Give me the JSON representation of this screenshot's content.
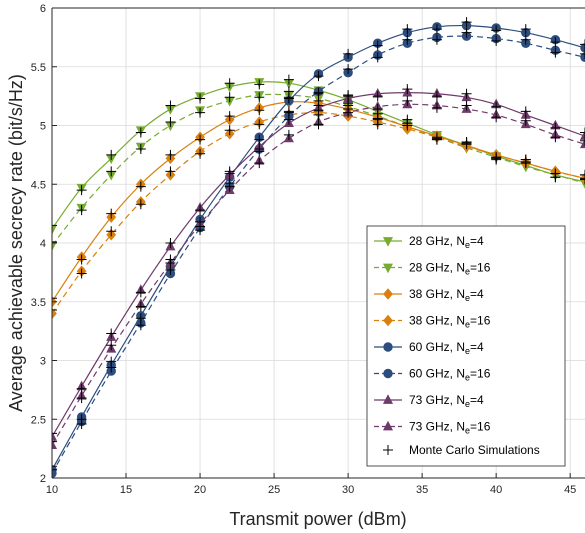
{
  "chart_data": {
    "type": "line",
    "title": "",
    "xlabel": "Transmit power (dBm)",
    "ylabel": "Average achievable secrecy rate (bit/s/Hz)",
    "xlim": [
      10,
      46
    ],
    "ylim": [
      2,
      6
    ],
    "xticks": [
      10,
      15,
      20,
      25,
      30,
      35,
      40,
      45
    ],
    "yticks": [
      2,
      2.5,
      3,
      3.5,
      4,
      4.5,
      5,
      5.5,
      6
    ],
    "grid": true,
    "legend_position": "bottom-right",
    "x": [
      10,
      12,
      14,
      16,
      18,
      20,
      22,
      24,
      26,
      28,
      30,
      32,
      34,
      36,
      38,
      40,
      42,
      44,
      46
    ],
    "series": [
      {
        "name": "28 GHz, N",
        "sub": "e",
        "suffix": "=4",
        "color": "#77ac30",
        "dash": "solid",
        "marker": "triangle-down",
        "values": [
          4.12,
          4.47,
          4.72,
          4.96,
          5.14,
          5.25,
          5.33,
          5.37,
          5.36,
          5.3,
          5.22,
          5.12,
          5.02,
          4.92,
          4.83,
          4.74,
          4.66,
          4.58,
          4.52
        ]
      },
      {
        "name": "28 GHz, N",
        "sub": "e",
        "suffix": "=16",
        "color": "#77ac30",
        "dash": "dashed",
        "marker": "triangle-down",
        "values": [
          3.98,
          4.3,
          4.58,
          4.82,
          5.0,
          5.13,
          5.21,
          5.26,
          5.26,
          5.23,
          5.16,
          5.08,
          4.99,
          4.9,
          4.81,
          4.73,
          4.65,
          4.58,
          4.51
        ]
      },
      {
        "name": "38 GHz, N",
        "sub": "e",
        "suffix": "=4",
        "color": "#d9800f",
        "dash": "solid",
        "marker": "diamond",
        "values": [
          3.5,
          3.88,
          4.22,
          4.5,
          4.72,
          4.9,
          5.05,
          5.15,
          5.2,
          5.19,
          5.14,
          5.07,
          4.99,
          4.91,
          4.83,
          4.75,
          4.68,
          4.61,
          4.55
        ]
      },
      {
        "name": "38 GHz, N",
        "sub": "e",
        "suffix": "=16",
        "color": "#d9800f",
        "dash": "dashed",
        "marker": "diamond",
        "values": [
          3.4,
          3.76,
          4.07,
          4.35,
          4.58,
          4.78,
          4.93,
          5.03,
          5.09,
          5.11,
          5.08,
          5.03,
          4.97,
          4.9,
          4.82,
          4.75,
          4.68,
          4.61,
          4.55
        ]
      },
      {
        "name": "60 GHz, N",
        "sub": "e",
        "suffix": "=4",
        "color": "#2c4d7e",
        "dash": "solid",
        "marker": "circle",
        "values": [
          2.07,
          2.52,
          2.96,
          3.38,
          3.8,
          4.2,
          4.56,
          4.9,
          5.21,
          5.44,
          5.58,
          5.7,
          5.79,
          5.84,
          5.85,
          5.83,
          5.79,
          5.73,
          5.66
        ]
      },
      {
        "name": "60 GHz, N",
        "sub": "e",
        "suffix": "=16",
        "color": "#2c4d7e",
        "dash": "dashed",
        "marker": "circle",
        "values": [
          2.04,
          2.48,
          2.91,
          3.32,
          3.74,
          4.13,
          4.48,
          4.8,
          5.08,
          5.29,
          5.45,
          5.6,
          5.7,
          5.75,
          5.76,
          5.74,
          5.7,
          5.64,
          5.58
        ]
      },
      {
        "name": "73 GHz, N",
        "sub": "e",
        "suffix": "=4",
        "color": "#6e3a6a",
        "dash": "solid",
        "marker": "triangle-up",
        "values": [
          2.35,
          2.78,
          3.2,
          3.6,
          3.97,
          4.3,
          4.58,
          4.82,
          5.02,
          5.15,
          5.23,
          5.27,
          5.28,
          5.27,
          5.24,
          5.18,
          5.09,
          5.0,
          4.91
        ]
      },
      {
        "name": "73 GHz, N",
        "sub": "e",
        "suffix": "=16",
        "color": "#6e3a6a",
        "dash": "dashed",
        "marker": "triangle-up",
        "values": [
          2.28,
          2.7,
          3.1,
          3.48,
          3.83,
          4.16,
          4.45,
          4.7,
          4.89,
          5.03,
          5.11,
          5.16,
          5.18,
          5.17,
          5.14,
          5.09,
          5.01,
          4.92,
          4.84
        ]
      }
    ],
    "monte_carlo": {
      "name": "Monte Carlo Simulations",
      "marker": "plus",
      "color": "#000000"
    }
  }
}
